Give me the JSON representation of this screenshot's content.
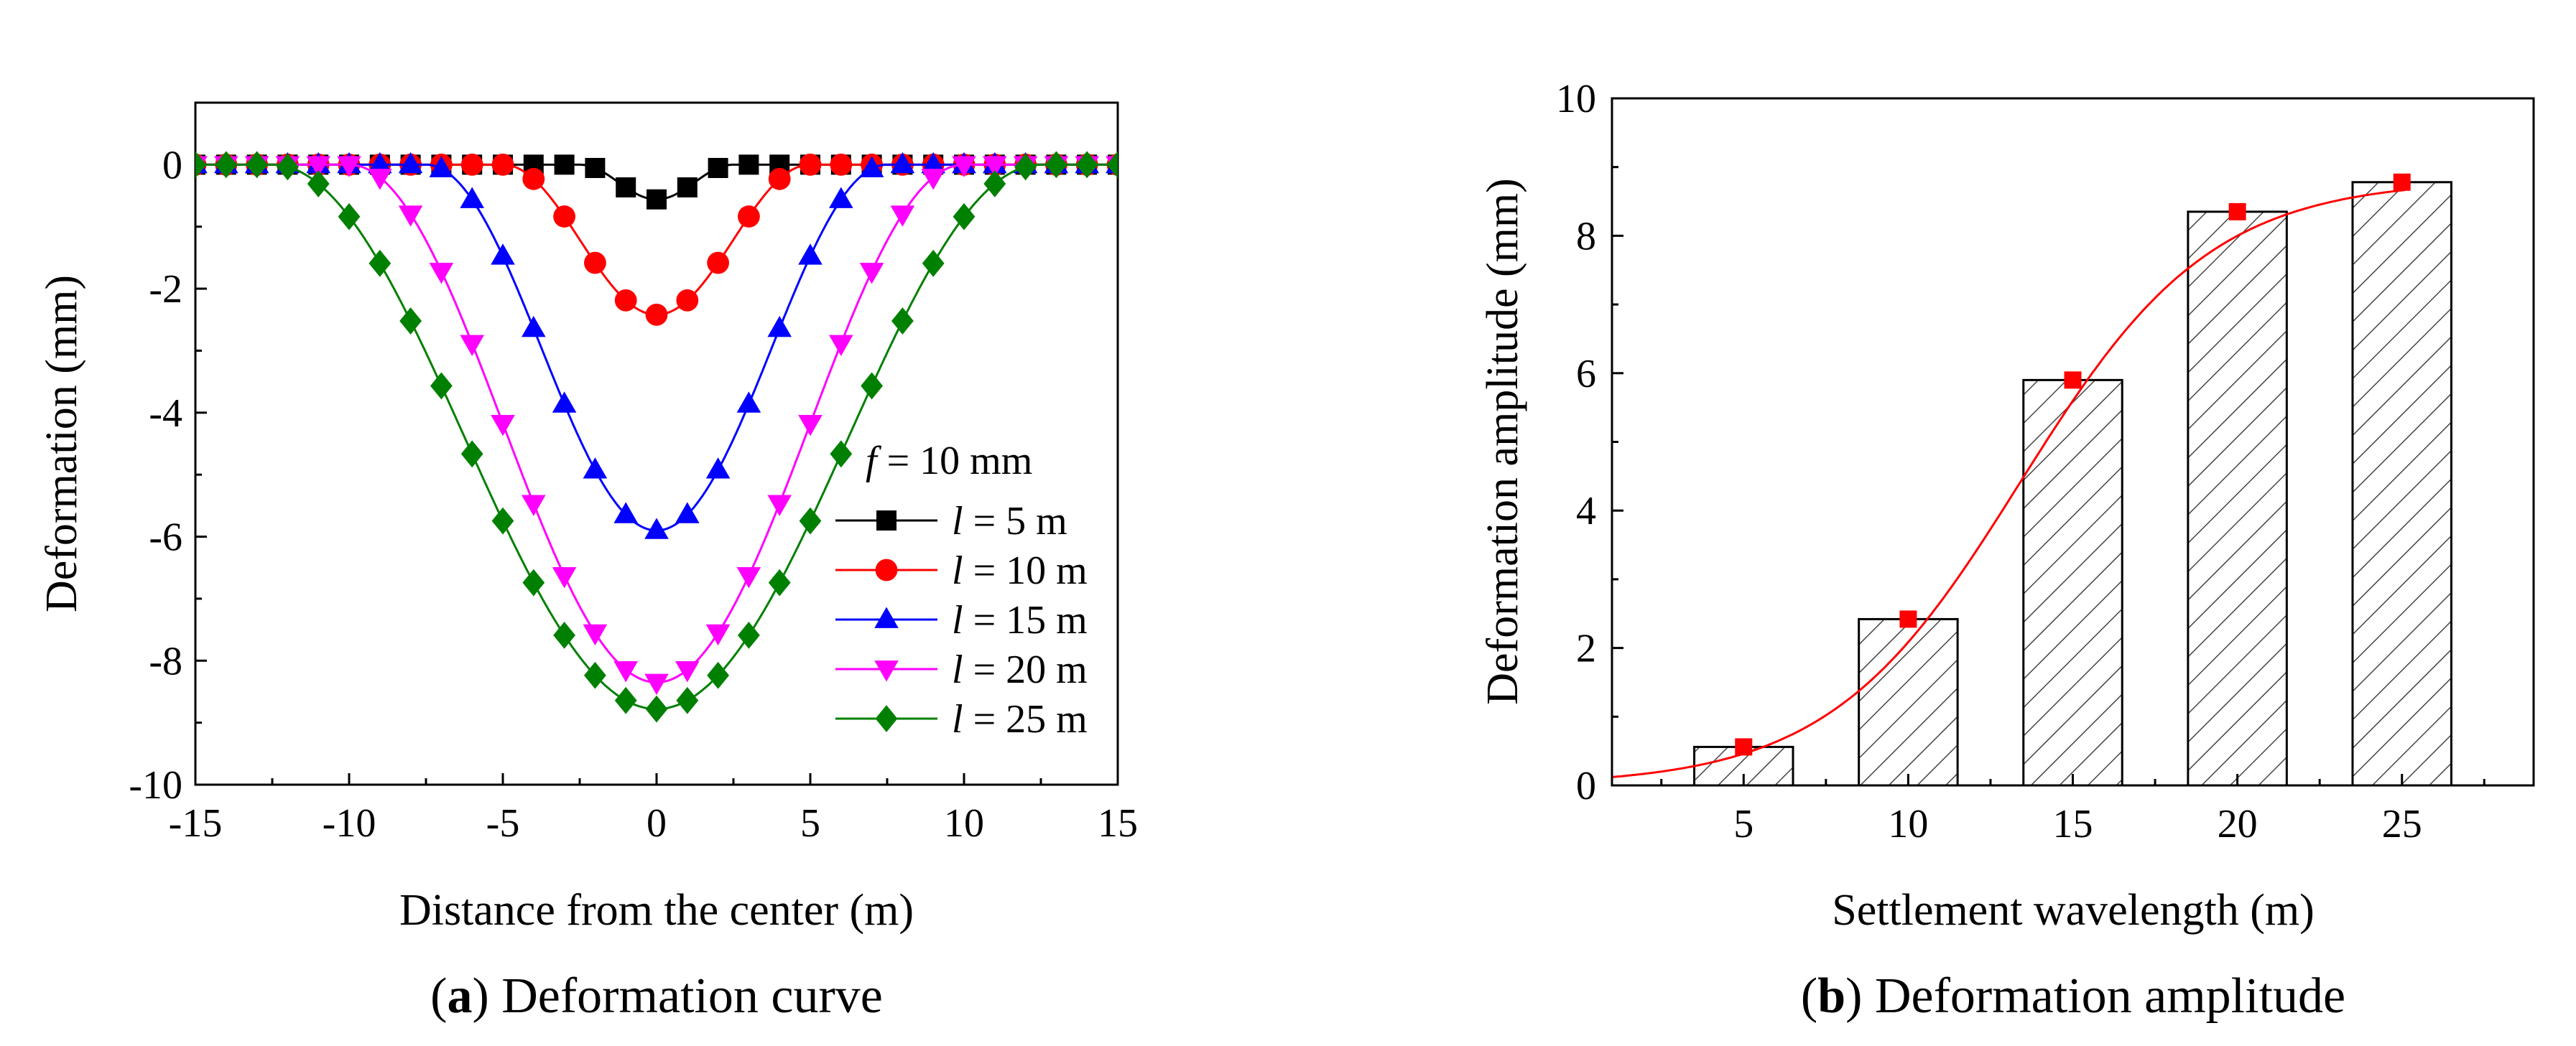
{
  "chart_data": [
    {
      "id": "a",
      "type": "line",
      "title": "",
      "caption_letter": "a",
      "caption_text": "Deformation curve",
      "xlabel": "Distance from the center (m)",
      "ylabel": "Deformation (mm)",
      "xlim": [
        -15,
        15
      ],
      "ylim": [
        -10,
        1
      ],
      "xticks": [
        -15,
        -10,
        -5,
        0,
        5,
        10,
        15
      ],
      "xtick_labels": [
        "-15",
        "-10",
        "-5",
        "0",
        "5",
        "10",
        "15"
      ],
      "yticks": [
        0,
        -2,
        -4,
        -6,
        -8,
        -10
      ],
      "ytick_labels": [
        "0",
        "-2",
        "-4",
        "-6",
        "-8",
        "-10"
      ],
      "legend": {
        "title_var": "f",
        "title_rest": " = 10 mm",
        "placement": "bottom-right"
      },
      "series": [
        {
          "name": "l = 5 m",
          "var": "l",
          "rest": " = 5 m",
          "wavelength": 5,
          "amplitude": 0.56,
          "color": "#000000",
          "marker": "square"
        },
        {
          "name": "l = 10 m",
          "var": "l",
          "rest": " = 10 m",
          "wavelength": 10,
          "amplitude": 2.42,
          "color": "#ff0000",
          "marker": "circle"
        },
        {
          "name": "l = 15 m",
          "var": "l",
          "rest": " = 15 m",
          "wavelength": 15,
          "amplitude": 5.9,
          "color": "#0000ff",
          "marker": "triangle-up"
        },
        {
          "name": "l = 20 m",
          "var": "l",
          "rest": " = 20 m",
          "wavelength": 20,
          "amplitude": 8.35,
          "color": "#ff00ff",
          "marker": "triangle-down"
        },
        {
          "name": "l = 25 m",
          "var": "l",
          "rest": " = 25 m",
          "wavelength": 25,
          "amplitude": 8.78,
          "color": "#008000",
          "marker": "diamond"
        }
      ],
      "x_step": 1
    },
    {
      "id": "b",
      "type": "bar",
      "title": "",
      "caption_letter": "b",
      "caption_text": "Deformation amplitude",
      "xlabel": "Settlement wavelength (m)",
      "ylabel": "Deformation amplitude (mm)",
      "xlim": [
        1,
        29
      ],
      "ylim": [
        0,
        10
      ],
      "categories": [
        "5",
        "10",
        "15",
        "20",
        "25"
      ],
      "x": [
        5,
        10,
        15,
        20,
        25
      ],
      "values": [
        0.56,
        2.42,
        5.9,
        8.35,
        8.78
      ],
      "yticks": [
        0,
        2,
        4,
        6,
        8,
        10
      ],
      "ytick_labels": [
        "0",
        "2",
        "4",
        "6",
        "8",
        "10"
      ],
      "bar_pattern": "diagonal-hatch",
      "fit_curve": {
        "type": "sigmoid",
        "color": "#ff0000",
        "marker_color": "#ff0000"
      }
    }
  ]
}
